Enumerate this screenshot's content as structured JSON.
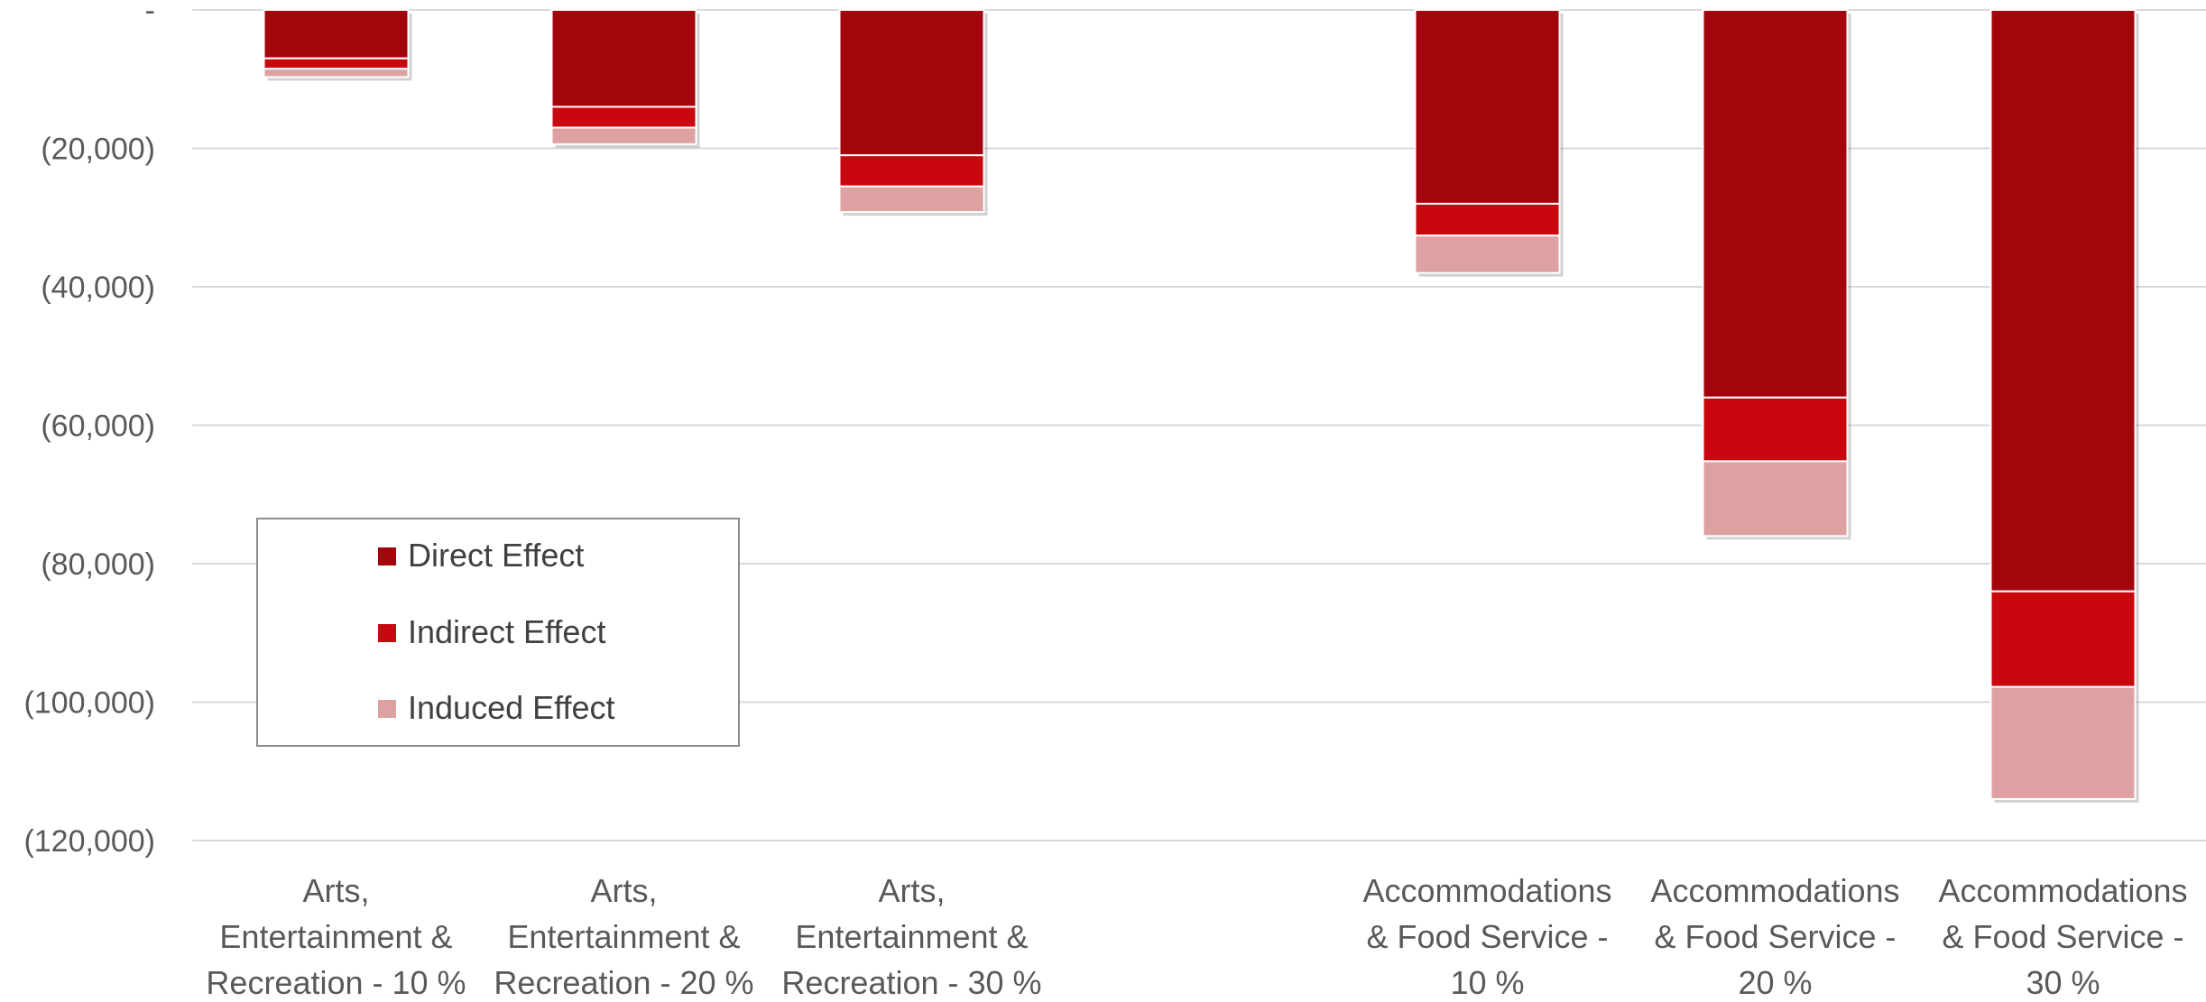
{
  "chart_data": {
    "type": "bar",
    "stacked": true,
    "categories": [
      [
        "Arts,",
        "Entertainment &",
        "Recreation - 10 %"
      ],
      [
        "Arts,",
        "Entertainment &",
        "Recreation - 20 %"
      ],
      [
        "Arts,",
        "Entertainment &",
        "Recreation - 30 %"
      ],
      null,
      [
        "Accommodations",
        "& Food Service -",
        "10 %"
      ],
      [
        "Accommodations",
        "& Food Service -",
        "20 %"
      ],
      [
        "Accommodations",
        "& Food Service -",
        "30 %"
      ]
    ],
    "series": [
      {
        "name": "Direct Effect",
        "color": "#a3050c",
        "values": [
          -7000,
          -14000,
          -21000,
          null,
          -28000,
          -56000,
          -84000
        ]
      },
      {
        "name": "Indirect Effect",
        "color": "#c8070e",
        "values": [
          -1500,
          -3000,
          -4500,
          null,
          -4600,
          -9200,
          -13800
        ]
      },
      {
        "name": "Induced Effect",
        "color": "#dda1a2",
        "values": [
          -1200,
          -2400,
          -3700,
          null,
          -5400,
          -10800,
          -16200
        ]
      }
    ],
    "y_ticks": [
      {
        "value": 0,
        "label": "-"
      },
      {
        "value": -20000,
        "label": "(20,000)"
      },
      {
        "value": -40000,
        "label": "(40,000)"
      },
      {
        "value": -60000,
        "label": "(60,000)"
      },
      {
        "value": -80000,
        "label": "(80,000)"
      },
      {
        "value": -100000,
        "label": "(100,000)"
      },
      {
        "value": -120000,
        "label": "(120,000)"
      }
    ],
    "ylim": [
      -120000,
      0
    ],
    "grid": true,
    "legend_position": "bottom-left"
  }
}
